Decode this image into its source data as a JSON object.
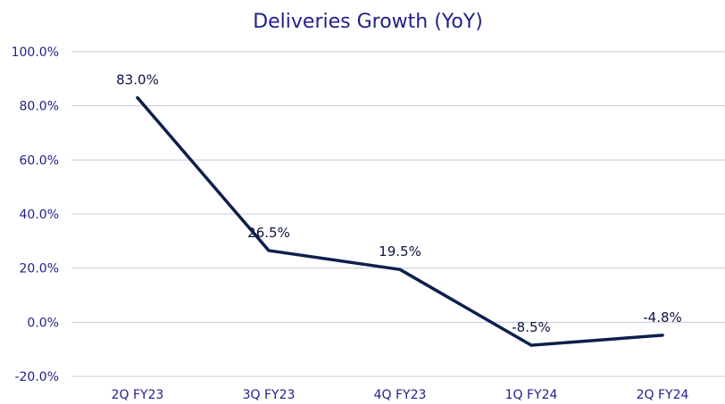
{
  "chart_data": {
    "type": "line",
    "title": "Deliveries Growth (YoY)",
    "categories": [
      "2Q FY23",
      "3Q FY23",
      "4Q FY23",
      "1Q FY24",
      "2Q FY24"
    ],
    "series": [
      {
        "values": [
          83.0,
          26.5,
          19.5,
          -8.5,
          -4.8
        ],
        "labels": [
          "83.0%",
          "26.5%",
          "19.5%",
          "-8.5%",
          "-4.8%"
        ],
        "color": "#0d1f4d"
      }
    ],
    "y_ticks": [
      100,
      80,
      60,
      40,
      20,
      0,
      -20
    ],
    "y_tick_labels": [
      "100.0%",
      "80.0%",
      "60.0%",
      "40.0%",
      "20.0%",
      "0.0%",
      "-20.0%"
    ],
    "ylim": [
      -20,
      100
    ],
    "grid": true,
    "legend": "none"
  }
}
